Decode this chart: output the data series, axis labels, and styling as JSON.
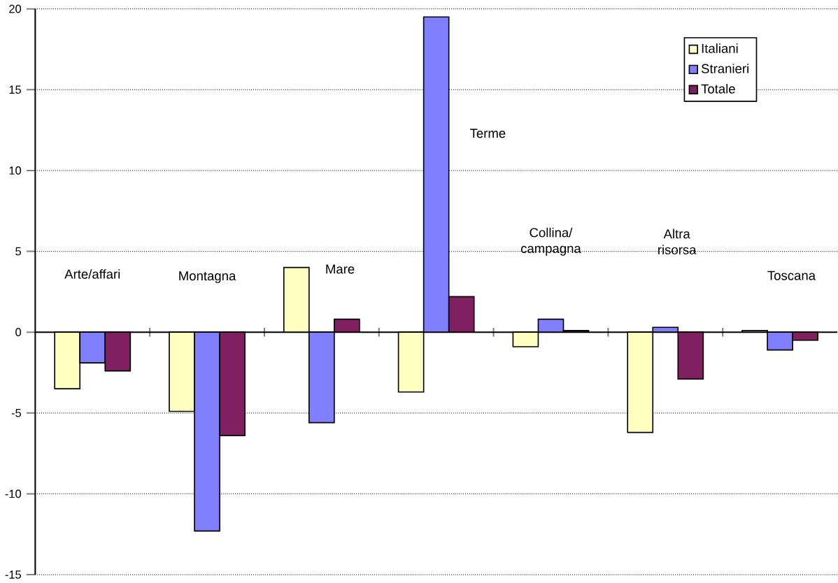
{
  "chart_data": {
    "type": "bar",
    "categories": [
      "Arte/affari",
      "Montagna",
      "Mare",
      "Terme",
      "Collina/ campagna",
      "Altra risorsa",
      "Toscana"
    ],
    "series": [
      {
        "name": "Italiani",
        "color": "#ffffc0",
        "values": [
          -3.5,
          -4.9,
          4.0,
          -3.7,
          -0.9,
          -6.2,
          0.1
        ]
      },
      {
        "name": "Stranieri",
        "color": "#8080ff",
        "values": [
          -1.9,
          -12.3,
          -5.6,
          19.5,
          0.8,
          0.3,
          -1.1
        ]
      },
      {
        "name": "Totale",
        "color": "#802060",
        "values": [
          -2.4,
          -6.4,
          0.8,
          2.2,
          0.1,
          -2.9,
          -0.5
        ]
      }
    ],
    "ylim": [
      -15,
      20
    ],
    "yticks": [
      -15,
      -10,
      -5,
      0,
      5,
      10,
      15,
      20
    ],
    "grid": "y",
    "legend": "top right",
    "tick_labels": "y"
  }
}
